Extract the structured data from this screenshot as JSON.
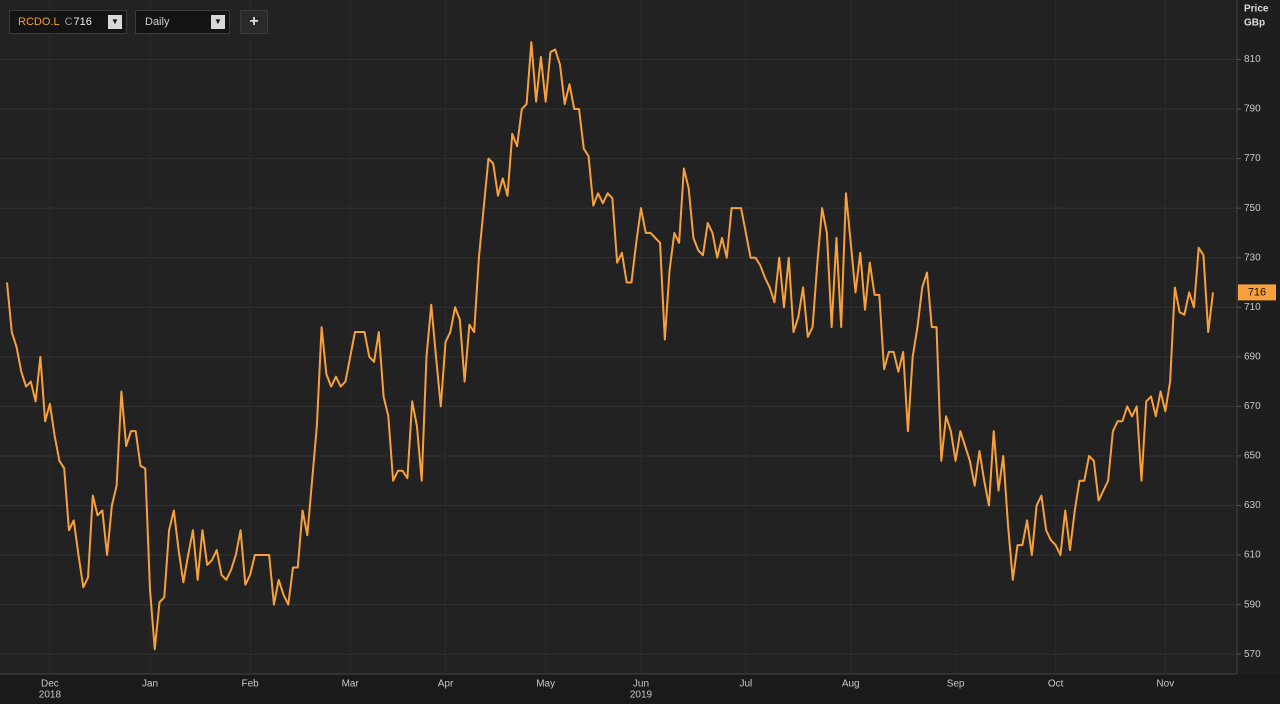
{
  "chart_data": {
    "type": "line",
    "ticker": "RCDO.L",
    "close_label": "C",
    "close": 716,
    "interval": "Daily",
    "y_axis_label": [
      "Price",
      "GBp"
    ],
    "last_price": 716,
    "series": [
      {
        "color": "#f7a03c",
        "values": [
          720,
          700,
          694,
          684,
          678,
          680,
          672,
          690,
          664,
          671,
          658,
          648,
          645,
          620,
          624,
          610,
          597,
          601,
          634,
          626,
          628,
          610,
          630,
          638,
          676,
          654,
          660,
          660,
          646,
          645,
          596,
          572,
          591,
          593,
          620,
          628,
          612,
          599,
          610,
          620,
          600,
          620,
          606,
          608,
          612,
          602,
          600,
          604,
          610,
          620,
          598,
          602,
          610,
          610,
          610,
          610,
          590,
          600,
          594,
          590,
          605,
          605,
          628,
          618,
          640,
          662,
          702,
          683,
          678,
          682,
          678,
          680,
          690,
          700,
          700,
          700,
          690,
          688,
          700,
          674,
          666,
          640,
          644,
          644,
          641,
          672,
          662,
          640,
          690,
          711,
          690,
          670,
          696,
          700,
          710,
          705,
          680,
          703,
          700,
          730,
          750,
          770,
          768,
          755,
          762,
          755,
          780,
          775,
          790,
          792,
          817,
          793,
          811,
          793,
          813,
          814,
          808,
          792,
          800,
          790,
          790,
          774,
          771,
          751,
          756,
          752,
          756,
          754,
          728,
          732,
          720,
          720,
          736,
          750,
          740,
          740,
          738,
          736,
          697,
          725,
          740,
          736,
          766,
          758,
          738,
          733,
          731,
          744,
          740,
          730,
          738,
          730,
          750,
          750,
          750,
          740,
          730,
          730,
          727,
          722,
          718,
          712,
          730,
          710,
          730,
          700,
          706,
          718,
          698,
          702,
          728,
          750,
          740,
          702,
          738,
          702,
          756,
          736,
          716,
          732,
          709,
          728,
          715,
          715,
          685,
          692,
          692,
          684,
          692,
          660,
          690,
          702,
          718,
          724,
          702,
          702,
          648,
          666,
          660,
          648,
          660,
          654,
          648,
          638,
          652,
          640,
          630,
          660,
          636,
          650,
          622,
          600,
          614,
          614,
          624,
          610,
          630,
          634,
          620,
          616,
          614,
          610,
          628,
          612,
          628,
          640,
          640,
          650,
          648,
          632,
          636,
          640,
          660,
          664,
          664,
          670,
          666,
          670,
          640,
          672,
          674,
          666,
          676,
          668,
          680,
          718,
          708,
          707,
          716,
          710,
          734,
          731,
          700,
          716
        ]
      }
    ],
    "xlim": [
      0,
      253
    ],
    "xticks": [
      {
        "value": 9,
        "label": "Dec"
      },
      {
        "value": 30,
        "label": "Jan"
      },
      {
        "value": 51,
        "label": "Feb"
      },
      {
        "value": 72,
        "label": "Mar"
      },
      {
        "value": 92,
        "label": "Apr"
      },
      {
        "value": 113,
        "label": "May"
      },
      {
        "value": 133,
        "label": "Jun"
      },
      {
        "value": 155,
        "label": "Jul"
      },
      {
        "value": 177,
        "label": "Aug"
      },
      {
        "value": 199,
        "label": "Sep"
      },
      {
        "value": 220,
        "label": "Oct"
      },
      {
        "value": 243,
        "label": "Nov"
      }
    ],
    "year_ticks": [
      {
        "value": 9,
        "label": "2018"
      },
      {
        "value": 133,
        "label": "2019"
      }
    ],
    "ylim": [
      562,
      834
    ],
    "yticks": [
      570,
      590,
      610,
      630,
      650,
      670,
      690,
      710,
      730,
      750,
      770,
      790,
      810
    ],
    "grid": true
  }
}
